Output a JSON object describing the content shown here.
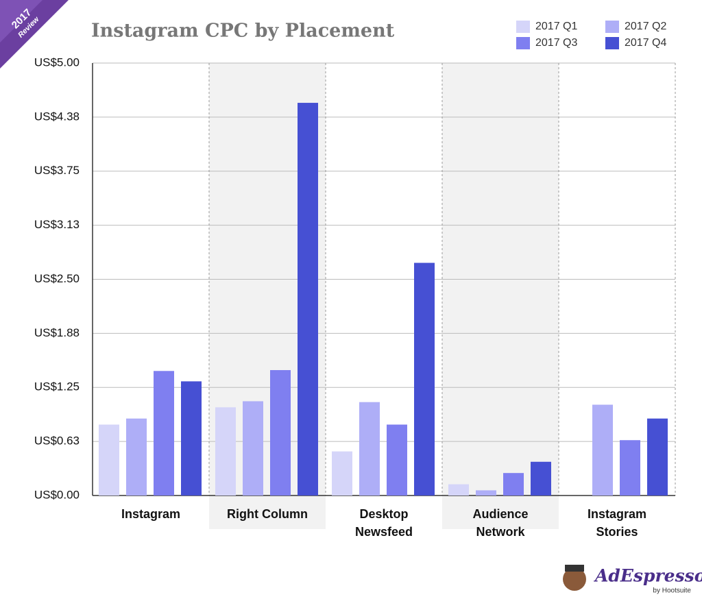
{
  "chart_data": {
    "type": "bar",
    "title": "Instagram CPC by Placement",
    "categories": [
      "Instagram",
      "Right Column",
      "Desktop Newsfeed",
      "Audience Network",
      "Instagram Stories"
    ],
    "series": [
      {
        "name": "2017 Q1",
        "color": "#d5d5f9",
        "values": [
          0.82,
          1.02,
          0.51,
          0.13,
          null
        ]
      },
      {
        "name": "2017 Q2",
        "color": "#aeaef7",
        "values": [
          0.89,
          1.09,
          1.08,
          0.06,
          1.05
        ]
      },
      {
        "name": "2017 Q3",
        "color": "#7f7ff0",
        "values": [
          1.44,
          1.45,
          0.82,
          0.26,
          0.64
        ]
      },
      {
        "name": "2017 Q4",
        "color": "#4650d3",
        "values": [
          1.32,
          4.54,
          2.69,
          0.39,
          0.89
        ]
      }
    ],
    "ylim": [
      0,
      5
    ],
    "yticks": [
      {
        "value": 0,
        "label": "US$0.00"
      },
      {
        "value": 0.625,
        "label": "US$0.63"
      },
      {
        "value": 1.25,
        "label": "US$1.25"
      },
      {
        "value": 1.875,
        "label": "US$1.88"
      },
      {
        "value": 2.5,
        "label": "US$2.50"
      },
      {
        "value": 3.125,
        "label": "US$3.13"
      },
      {
        "value": 3.75,
        "label": "US$3.75"
      },
      {
        "value": 4.375,
        "label": "US$4.38"
      },
      {
        "value": 5,
        "label": "US$5.00"
      }
    ],
    "grid": true
  },
  "branding": {
    "badge_year": "2017",
    "badge_text": "Review",
    "logo": "AdEspresso",
    "logo_sub": "by Hootsuite"
  }
}
